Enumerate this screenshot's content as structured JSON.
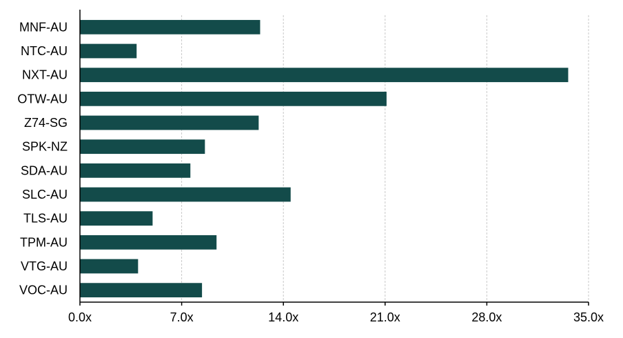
{
  "chart_data": {
    "type": "bar",
    "orientation": "horizontal",
    "title": "",
    "xlabel": "",
    "ylabel": "",
    "categories": [
      "MNF-AU",
      "NTC-AU",
      "NXT-AU",
      "OTW-AU",
      "Z74-SG",
      "SPK-NZ",
      "SDA-AU",
      "SLC-AU",
      "TLS-AU",
      "TPM-AU",
      "VTG-AU",
      "VOC-AU"
    ],
    "values": [
      12.4,
      3.9,
      33.6,
      21.1,
      12.3,
      8.6,
      7.6,
      14.5,
      5.0,
      9.4,
      4.0,
      8.4
    ],
    "xlim": [
      0,
      35
    ],
    "xticks": [
      0,
      7,
      14,
      21,
      28,
      35
    ],
    "xtick_labels": [
      "0.0x",
      "7.0x",
      "14.0x",
      "21.0x",
      "28.0x",
      "35.0x"
    ],
    "grid": true,
    "legend": "none",
    "bar_color": "#134b4a"
  }
}
